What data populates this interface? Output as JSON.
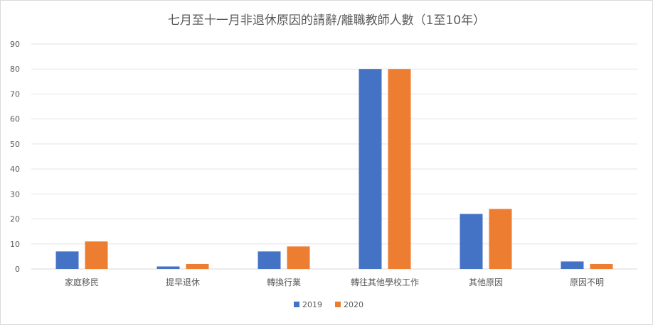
{
  "chart_data": {
    "type": "bar",
    "title": "七月至十一月非退休原因的請辭/離職教師人數（1至10年）",
    "categories": [
      "家庭移民",
      "提早退休",
      "轉換行業",
      "轉往其他學校工作",
      "其他原因",
      "原因不明"
    ],
    "series": [
      {
        "name": "2019",
        "color": "#4472c4",
        "values": [
          7,
          1,
          7,
          80,
          22,
          3
        ]
      },
      {
        "name": "2020",
        "color": "#ed7d31",
        "values": [
          11,
          2,
          9,
          80,
          24,
          2
        ]
      }
    ],
    "ylim": [
      0,
      90
    ],
    "yticks": [
      "0",
      "10",
      "20",
      "30",
      "40",
      "50",
      "60",
      "70",
      "80",
      "90"
    ],
    "grid": true,
    "legend_position": "bottom"
  }
}
